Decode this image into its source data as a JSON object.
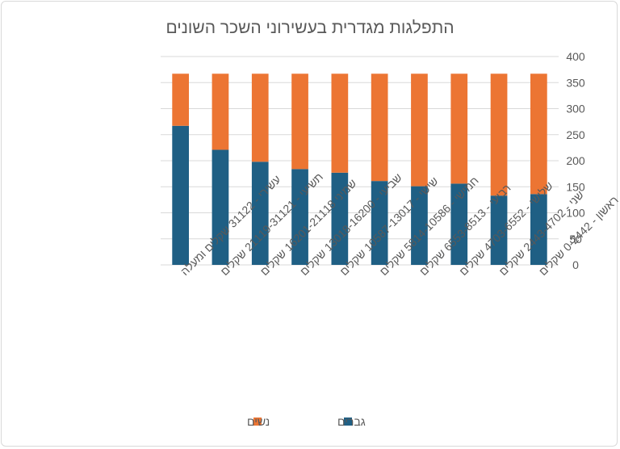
{
  "chart_data": {
    "type": "bar",
    "stacked": true,
    "title": "התפלגות מגדרית בעשירוני השכר השונים",
    "xlabel": "",
    "ylabel": "",
    "ylim": [
      0,
      400
    ],
    "yticks": [
      0,
      50,
      100,
      150,
      200,
      250,
      300,
      350,
      400
    ],
    "grid": true,
    "legend_position": "bottom",
    "categories": [
      "ראשון - 0-2442 שקלים",
      "שני - 2443-4702 שקלים",
      "שלישי - 4703-6552 שקלים",
      "רביעי - 6553-8513 שקלים",
      "חמישי - 5814-10586 שקלים",
      "שישי - 10587-13017 שקלים",
      "שביעי - 13018-16200 שקלים",
      "שמיני 16201-21118 שקלים",
      "תשיעי - 21119-31121 שקלים",
      "עשירי - 31122 שקלים ומעלה"
    ],
    "series": [
      {
        "name": "גברים",
        "color": "#1f5f84",
        "values": [
          136,
          133,
          156,
          151,
          161,
          177,
          184,
          198,
          221,
          267
        ]
      },
      {
        "name": "נשים",
        "color": "#ec7533",
        "values": [
          231,
          234,
          211,
          216,
          206,
          190,
          183,
          169,
          146,
          100
        ]
      }
    ]
  }
}
